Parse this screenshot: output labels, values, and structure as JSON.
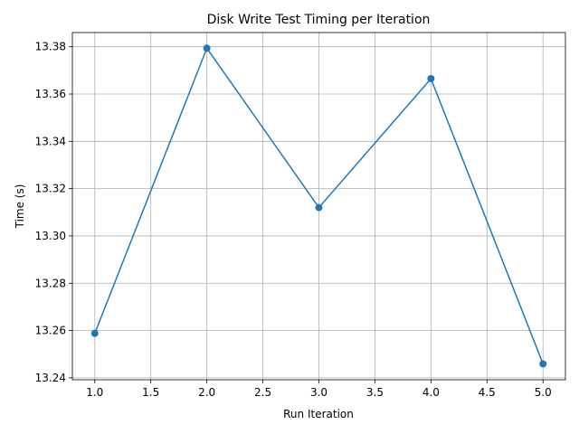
{
  "chart_data": {
    "type": "line",
    "title": "Disk Write Test Timing per Iteration",
    "xlabel": "Run Iteration",
    "ylabel": "Time (s)",
    "x": [
      1.0,
      2.0,
      3.0,
      4.0,
      5.0
    ],
    "series": [
      {
        "values": [
          13.2588,
          13.3794,
          13.312,
          13.3665,
          13.2459
        ],
        "color": "#1f77b4"
      }
    ],
    "xlim": [
      0.8,
      5.2
    ],
    "ylim": [
      13.2392,
      13.386
    ],
    "xticks": [
      "1.0",
      "1.5",
      "2.0",
      "2.5",
      "3.0",
      "3.5",
      "4.0",
      "4.5",
      "5.0"
    ],
    "yticks": [
      "13.24",
      "13.26",
      "13.28",
      "13.30",
      "13.32",
      "13.34",
      "13.36",
      "13.38"
    ],
    "grid": true,
    "marker": "circle"
  }
}
